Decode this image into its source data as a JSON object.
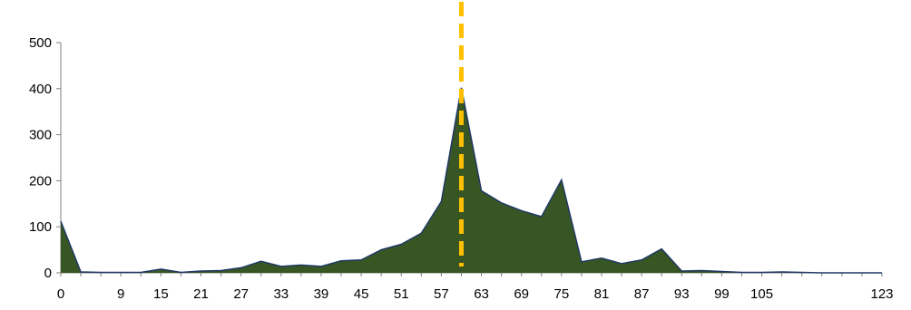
{
  "chart_data": {
    "type": "area",
    "title": "",
    "xlabel": "",
    "ylabel": "",
    "x": [
      0,
      3,
      6,
      9,
      12,
      15,
      18,
      21,
      24,
      27,
      30,
      33,
      36,
      39,
      42,
      45,
      48,
      51,
      54,
      57,
      60,
      63,
      66,
      69,
      72,
      75,
      78,
      81,
      84,
      87,
      90,
      93,
      96,
      99,
      102,
      105,
      108,
      111,
      114,
      117,
      120,
      123
    ],
    "values": [
      112,
      2,
      1,
      1,
      1,
      8,
      1,
      4,
      5,
      11,
      25,
      14,
      17,
      14,
      26,
      28,
      50,
      62,
      86,
      155,
      402,
      178,
      152,
      135,
      122,
      202,
      24,
      32,
      20,
      28,
      52,
      4,
      5,
      3,
      1,
      1,
      2,
      1,
      0,
      0,
      0,
      0
    ],
    "x_tick_labels": [
      "0",
      "9",
      "15",
      "21",
      "27",
      "33",
      "39",
      "45",
      "51",
      "57",
      "63",
      "69",
      "75",
      "81",
      "87",
      "93",
      "99",
      "105",
      "123"
    ],
    "y_tick_labels": [
      "0",
      "100",
      "200",
      "300",
      "400",
      "500"
    ],
    "ylim": [
      0,
      500
    ],
    "grid": false,
    "legend": "none",
    "vertical_marker_x": 60,
    "colors": {
      "fill": "#375623",
      "line": "#1f3864",
      "marker": "#ffc000",
      "axis": "#7f7f7f"
    }
  }
}
